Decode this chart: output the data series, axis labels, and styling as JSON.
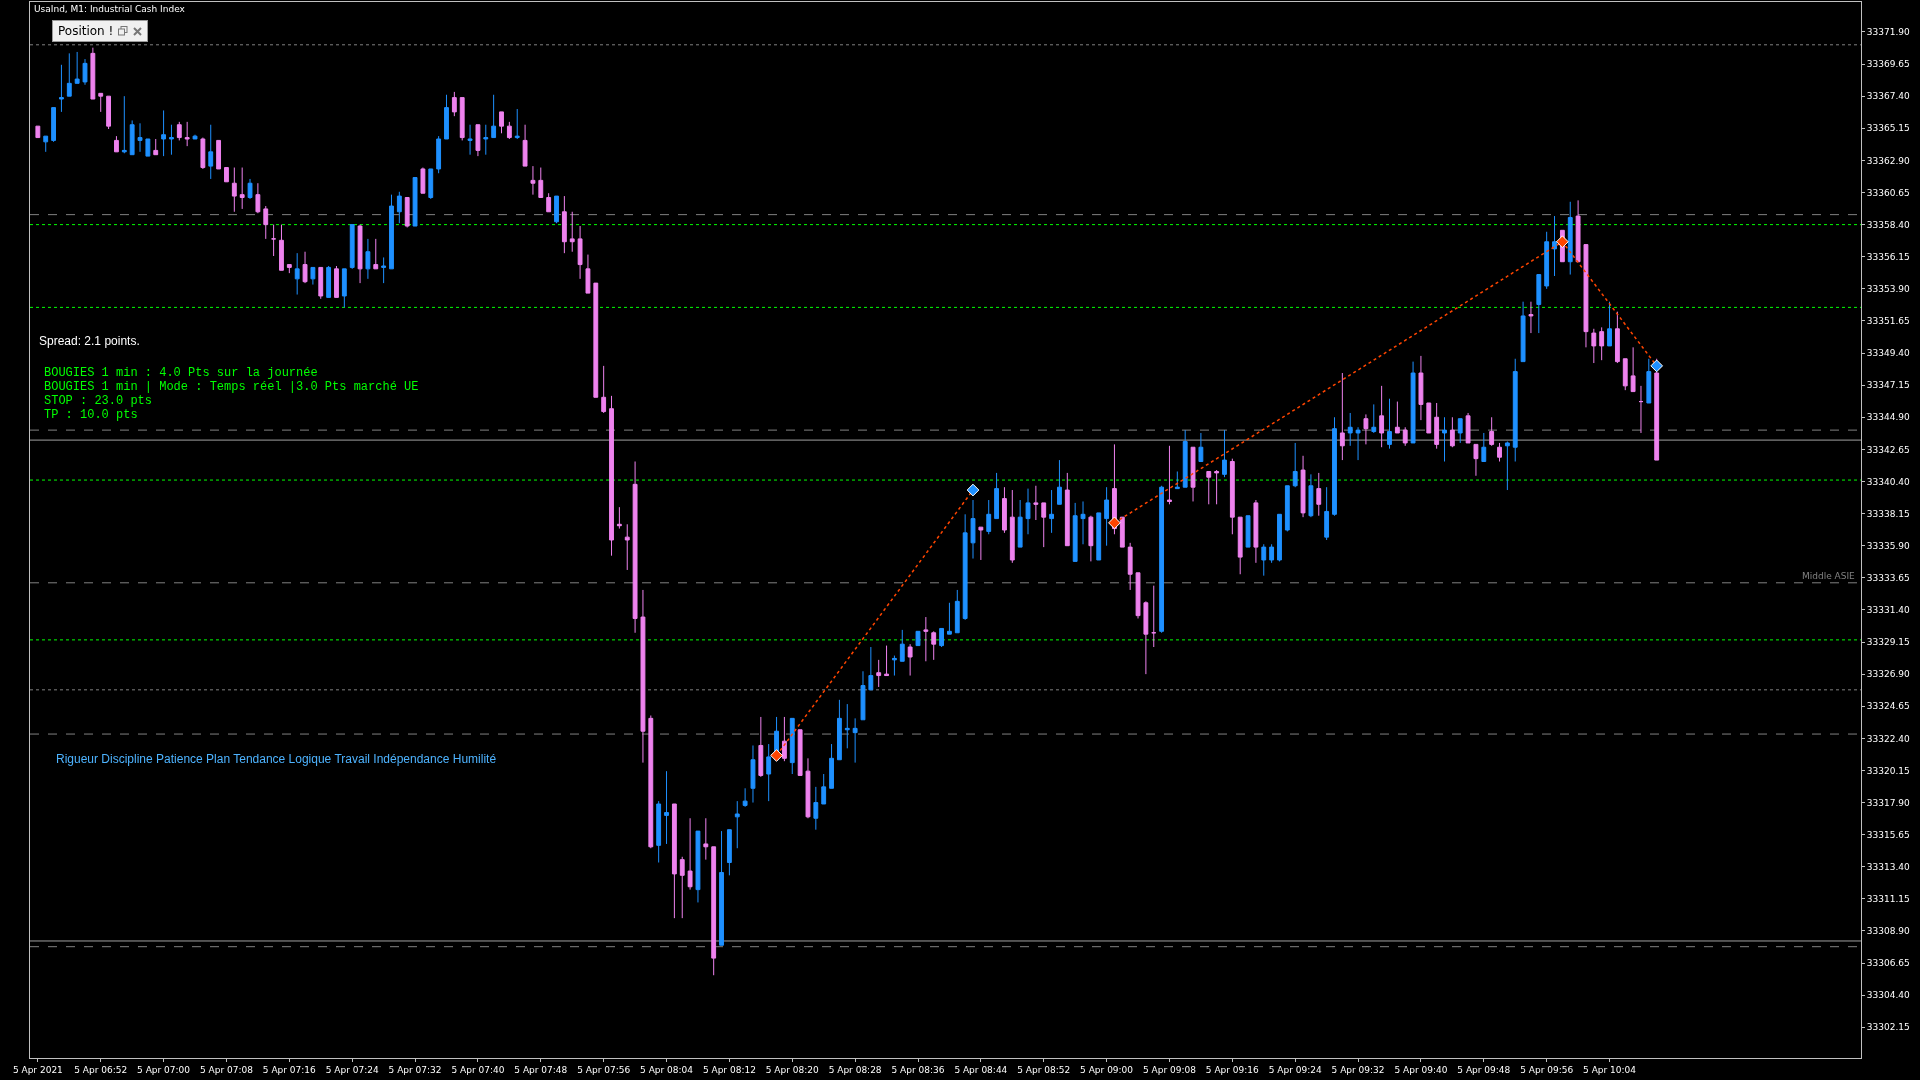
{
  "chart_data": {
    "type": "candlestick",
    "title": "UsaInd, M1: Industrial Cash Index",
    "annotations": [
      "Position !",
      "Spread: 2.1 points.",
      "BOUGIES 1 min : 4.0 Pts sur la journée",
      "BOUGIES 1 min | Mode : Temps réel |3.0 Pts marché UE",
      "STOP : 23.0 pts",
      "TP : 10.0 pts",
      "Rigueur Discipline Patience Plan Tendance Logique Travail Indépendance Humilité"
    ],
    "xlim": [
      "2021-04-05T06:43",
      "2021-04-05T10:36"
    ],
    "xticks": [
      {
        "value": "2021-04-05T06:44",
        "label": "5 Apr 2021"
      },
      {
        "value": "2021-04-05T06:52",
        "label": "5 Apr 06:52"
      },
      {
        "value": "2021-04-05T07:00",
        "label": "5 Apr 07:00"
      },
      {
        "value": "2021-04-05T07:08",
        "label": "5 Apr 07:08"
      },
      {
        "value": "2021-04-05T07:16",
        "label": "5 Apr 07:16"
      },
      {
        "value": "2021-04-05T07:24",
        "label": "5 Apr 07:24"
      },
      {
        "value": "2021-04-05T07:32",
        "label": "5 Apr 07:32"
      },
      {
        "value": "2021-04-05T07:40",
        "label": "5 Apr 07:40"
      },
      {
        "value": "2021-04-05T07:48",
        "label": "5 Apr 07:48"
      },
      {
        "value": "2021-04-05T07:56",
        "label": "5 Apr 07:56"
      },
      {
        "value": "2021-04-05T08:04",
        "label": "5 Apr 08:04"
      },
      {
        "value": "2021-04-05T08:12",
        "label": "5 Apr 08:12"
      },
      {
        "value": "2021-04-05T08:20",
        "label": "5 Apr 08:20"
      },
      {
        "value": "2021-04-05T08:28",
        "label": "5 Apr 08:28"
      },
      {
        "value": "2021-04-05T08:36",
        "label": "5 Apr 08:36"
      },
      {
        "value": "2021-04-05T08:44",
        "label": "5 Apr 08:44"
      },
      {
        "value": "2021-04-05T08:52",
        "label": "5 Apr 08:52"
      },
      {
        "value": "2021-04-05T09:00",
        "label": "5 Apr 09:00"
      },
      {
        "value": "2021-04-05T09:08",
        "label": "5 Apr 09:08"
      },
      {
        "value": "2021-04-05T09:16",
        "label": "5 Apr 09:16"
      },
      {
        "value": "2021-04-05T09:24",
        "label": "5 Apr 09:24"
      },
      {
        "value": "2021-04-05T09:32",
        "label": "5 Apr 09:32"
      },
      {
        "value": "2021-04-05T09:40",
        "label": "5 Apr 09:40"
      },
      {
        "value": "2021-04-05T09:48",
        "label": "5 Apr 09:48"
      },
      {
        "value": "2021-04-05T09:56",
        "label": "5 Apr 09:56"
      },
      {
        "value": "2021-04-05T10:04",
        "label": "5 Apr 10:04"
      }
    ],
    "ylim": [
      33300.0,
      33374.0
    ],
    "yticks": [
      33302.15,
      {
        "value": 33304.4,
        "label": "33304.40"
      },
      33306.65,
      {
        "value": 33308.9,
        "label": "33308.90"
      },
      33311.15,
      {
        "value": 33313.4,
        "label": "33313.40"
      },
      33315.65,
      {
        "value": 33317.9,
        "label": "33317.90"
      },
      33320.15,
      {
        "value": 33322.4,
        "label": "33322.40"
      },
      33324.65,
      {
        "value": 33326.9,
        "label": "33326.90"
      },
      33329.15,
      {
        "value": 33331.4,
        "label": "33331.40"
      },
      33333.65,
      {
        "value": 33335.9,
        "label": "33335.90"
      },
      33338.15,
      {
        "value": 33340.4,
        "label": "33340.40"
      },
      33342.65,
      {
        "value": 33344.9,
        "label": "33344.90"
      },
      33347.15,
      {
        "value": 33349.4,
        "label": "33349.40"
      },
      33351.65,
      {
        "value": 33353.9,
        "label": "33353.90"
      },
      33356.15,
      {
        "value": 33358.4,
        "label": "33358.40"
      },
      33360.65,
      {
        "value": 33362.9,
        "label": "33362.90"
      },
      33365.15,
      {
        "value": 33367.4,
        "label": "33367.40"
      },
      33369.65,
      {
        "value": 33371.9,
        "label": "33371.90"
      }
    ],
    "ref_lines": [
      {
        "axis": "y",
        "value": 33371.0,
        "color": "#808080",
        "line_style": "dotted"
      },
      {
        "axis": "y",
        "value": 33359.1,
        "color": "#808080",
        "line_style": "dashed"
      },
      {
        "axis": "y",
        "value": 33358.4,
        "color": "#00ff00",
        "line_style": "dotted"
      },
      {
        "axis": "y",
        "value": 33352.6,
        "color": "#00ff00",
        "line_style": "dotted"
      },
      {
        "axis": "y",
        "value": 33344.0,
        "color": "#808080",
        "line_style": "dashed"
      },
      {
        "axis": "y",
        "value": 33343.3,
        "color": "#a0a0a0",
        "line_style": "solid"
      },
      {
        "axis": "y",
        "value": 33340.5,
        "color": "#00ff00",
        "line_style": "dotted"
      },
      {
        "axis": "y",
        "value": 33333.3,
        "color": "#808080",
        "line_style": "dashed",
        "label": "Middle ASIE"
      },
      {
        "axis": "y",
        "value": 33329.3,
        "color": "#00ff00",
        "line_style": "dotted"
      },
      {
        "axis": "y",
        "value": 33325.8,
        "color": "#808080",
        "line_style": "dotted"
      },
      {
        "axis": "y",
        "value": 33322.7,
        "color": "#808080",
        "line_style": "dashed"
      },
      {
        "axis": "y",
        "value": 33308.2,
        "color": "#a0a0a0",
        "line_style": "solid"
      },
      {
        "axis": "y",
        "value": 33307.8,
        "color": "#808080",
        "line_style": "dashed"
      }
    ],
    "series": [
      {
        "type": "line",
        "color": "#ff4500",
        "line_style": "dotted",
        "x": [
          "2021-04-05T08:18",
          "2021-04-05T08:43",
          "2021-04-05T08:52",
          "2021-04-05T09:01",
          "2021-04-05T09:58",
          "2021-04-05T10:10"
        ],
        "values": [
          33321.2,
          33339.8,
          null,
          33337.5,
          33357.2,
          33348.5
        ]
      },
      {
        "type": "scatter",
        "color": "#ff4500",
        "marker": "diamond",
        "x": [
          "2021-04-05T08:18",
          "2021-04-05T09:01",
          "2021-04-05T09:58"
        ],
        "values": [
          33321.2,
          33337.5,
          33357.2
        ]
      },
      {
        "type": "scatter",
        "color": "#1e90ff",
        "marker": "diamond",
        "x": [
          "2021-04-05T08:43",
          "2021-04-05T10:10"
        ],
        "values": [
          33339.8,
          33348.5
        ]
      },
      {
        "color": "#1e90ff",
        "x": [
          "2021-04-05T06:45",
          "2021-04-05T06:46",
          "2021-04-05T06:47",
          "2021-04-05T06:48",
          "2021-04-05T06:49",
          "2021-04-05T06:50",
          "2021-04-05T06:55",
          "2021-04-05T06:56",
          "2021-04-05T06:57",
          "2021-04-05T06:58",
          "2021-04-05T07:00",
          "2021-04-05T07:01",
          "2021-04-05T07:04",
          "2021-04-05T07:06",
          "2021-04-05T07:11",
          "2021-04-05T07:17",
          "2021-04-05T07:19",
          "2021-04-05T07:21",
          "2021-04-05T07:23",
          "2021-04-05T07:24",
          "2021-04-05T07:26",
          "2021-04-05T07:28",
          "2021-04-05T07:29",
          "2021-04-05T07:30",
          "2021-04-05T07:32",
          "2021-04-05T07:34",
          "2021-04-05T07:35",
          "2021-04-05T07:36",
          "2021-04-05T07:39",
          "2021-04-05T07:41",
          "2021-04-05T07:42",
          "2021-04-05T07:45",
          "2021-04-05T07:50",
          "2021-04-05T08:03",
          "2021-04-05T08:04",
          "2021-04-05T08:08",
          "2021-04-05T08:11",
          "2021-04-05T08:12",
          "2021-04-05T08:13",
          "2021-04-05T08:14",
          "2021-04-05T08:15",
          "2021-04-05T08:17",
          "2021-04-05T08:18",
          "2021-04-05T08:20",
          "2021-04-05T08:23",
          "2021-04-05T08:24",
          "2021-04-05T08:25",
          "2021-04-05T08:26",
          "2021-04-05T08:27",
          "2021-04-05T08:28",
          "2021-04-05T08:29",
          "2021-04-05T08:30",
          "2021-04-05T08:33",
          "2021-04-05T08:34",
          "2021-04-05T08:36",
          "2021-04-05T08:39",
          "2021-04-05T08:40",
          "2021-04-05T08:41",
          "2021-04-05T08:42",
          "2021-04-05T08:43",
          "2021-04-05T08:45",
          "2021-04-05T08:46",
          "2021-04-05T08:49",
          "2021-04-05T08:50",
          "2021-04-05T08:53",
          "2021-04-05T08:54",
          "2021-04-05T08:56",
          "2021-04-05T08:57",
          "2021-04-05T08:59",
          "2021-04-05T09:00",
          "2021-04-05T09:07",
          "2021-04-05T09:09",
          "2021-04-05T09:10",
          "2021-04-05T09:12",
          "2021-04-05T09:15",
          "2021-04-05T09:18",
          "2021-04-05T09:20",
          "2021-04-05T09:21",
          "2021-04-05T09:22",
          "2021-04-05T09:23",
          "2021-04-05T09:24",
          "2021-04-05T09:26",
          "2021-04-05T09:28",
          "2021-04-05T09:29",
          "2021-04-05T09:31",
          "2021-04-05T09:32",
          "2021-04-05T09:34",
          "2021-04-05T09:36",
          "2021-04-05T09:39",
          "2021-04-05T09:43",
          "2021-04-05T09:45",
          "2021-04-05T09:48",
          "2021-04-05T09:51",
          "2021-04-05T09:52",
          "2021-04-05T09:53",
          "2021-04-05T09:55",
          "2021-04-05T09:56",
          "2021-04-05T09:57",
          "2021-04-05T09:59",
          "2021-04-05T10:04",
          "2021-04-05T10:09"
        ],
        "ohlc": [
          [
            33364.2,
            33364.6,
            33363.5,
            33364.6
          ],
          [
            33364.3,
            33366.6,
            33364.2,
            33366.6
          ],
          [
            33367.2,
            33369.6,
            33366.3,
            33367.3
          ],
          [
            33367.4,
            33370.4,
            33367.4,
            33368.3
          ],
          [
            33368.3,
            33370.5,
            33368.3,
            33368.6
          ],
          [
            33368.4,
            33370.0,
            33368.2,
            33369.7
          ],
          [
            33363.5,
            33367.4,
            33363.4,
            33363.6
          ],
          [
            33363.3,
            33365.7,
            33363.3,
            33365.4
          ],
          [
            33364.3,
            33365.5,
            33363.5,
            33364.5
          ],
          [
            33363.2,
            33364.4,
            33363.2,
            33364.4
          ],
          [
            33364.4,
            33366.4,
            33363.2,
            33364.7
          ],
          [
            33364.4,
            33365.4,
            33363.3,
            33364.5
          ],
          [
            33364.4,
            33364.7,
            33364.4,
            33364.6
          ],
          [
            33362.5,
            33365.4,
            33361.6,
            33363.5
          ],
          [
            33360.3,
            33361.6,
            33360.2,
            33361.3
          ],
          [
            33354.6,
            33356.4,
            33353.5,
            33355.3
          ],
          [
            33354.6,
            33355.4,
            33354.2,
            33355.4
          ],
          [
            33353.3,
            33355.5,
            33353.3,
            33355.4
          ],
          [
            33353.4,
            33355.3,
            33352.6,
            33355.3
          ],
          [
            33355.4,
            33358.4,
            33355.3,
            33358.4
          ],
          [
            33355.3,
            33357.4,
            33354.6,
            33356.5
          ],
          [
            33355.4,
            33356.1,
            33354.3,
            33355.5
          ],
          [
            33355.3,
            33360.5,
            33355.3,
            33359.7
          ],
          [
            33359.3,
            33360.7,
            33358.5,
            33360.4
          ],
          [
            33358.3,
            33361.7,
            33358.3,
            33361.7
          ],
          [
            33360.3,
            33362.3,
            33360.2,
            33362.3
          ],
          [
            33362.3,
            33364.6,
            33362.0,
            33364.4
          ],
          [
            33364.4,
            33367.5,
            33364.4,
            33366.6
          ],
          [
            33364.3,
            33365.4,
            33363.3,
            33364.4
          ],
          [
            33364.4,
            33365.4,
            33363.3,
            33364.5
          ],
          [
            33364.5,
            33367.5,
            33364.5,
            33365.3
          ],
          [
            33364.5,
            33366.5,
            33364.4,
            33364.6
          ],
          [
            33358.6,
            33360.4,
            33358.5,
            33360.4
          ],
          [
            33314.9,
            33318.0,
            33313.7,
            33317.8
          ],
          [
            33317.0,
            33320.1,
            33315.0,
            33317.2
          ],
          [
            33311.8,
            33315.9,
            33310.9,
            33315.9
          ],
          [
            33307.9,
            33315.9,
            33307.9,
            33313.0
          ],
          [
            33313.7,
            33316.0,
            33312.8,
            33316.0
          ],
          [
            33316.9,
            33318.0,
            33314.7,
            33317.1
          ],
          [
            33317.7,
            33318.9,
            33317.6,
            33318.0
          ],
          [
            33318.9,
            33321.9,
            33317.9,
            33320.9
          ],
          [
            33319.9,
            33322.0,
            33318.0,
            33321.1
          ],
          [
            33320.9,
            33323.9,
            33320.9,
            33322.9
          ],
          [
            33320.7,
            33323.8,
            33319.9,
            33323.8
          ],
          [
            33316.8,
            33319.0,
            33316.0,
            33317.9
          ],
          [
            33317.8,
            33319.9,
            33317.8,
            33319.0
          ],
          [
            33318.9,
            33322.0,
            33318.9,
            33321.0
          ],
          [
            33320.9,
            33325.1,
            33320.9,
            33323.8
          ],
          [
            33323.0,
            33324.8,
            33321.7,
            33323.1
          ],
          [
            33322.8,
            33323.8,
            33320.7,
            33323.1
          ],
          [
            33323.7,
            33327.1,
            33323.7,
            33326.1
          ],
          [
            33325.8,
            33328.8,
            33325.8,
            33326.8
          ],
          [
            33327.9,
            33328.2,
            33326.8,
            33328.0
          ],
          [
            33327.8,
            33330.0,
            33327.8,
            33329.0
          ],
          [
            33328.9,
            33329.9,
            33328.9,
            33329.9
          ],
          [
            33328.9,
            33330.1,
            33328.8,
            33330.1
          ],
          [
            33329.7,
            33331.9,
            33329.7,
            33329.9
          ],
          [
            33329.8,
            33332.8,
            33329.8,
            33332.0
          ],
          [
            33330.8,
            33338.1,
            33330.7,
            33336.8
          ],
          [
            33336.1,
            33339.1,
            33335.0,
            33337.8
          ],
          [
            33336.9,
            33339.1,
            33336.7,
            33338.1
          ],
          [
            33337.8,
            33341.0,
            33337.8,
            33339.9
          ],
          [
            33335.8,
            33339.1,
            33335.8,
            33337.9
          ],
          [
            33337.8,
            33339.9,
            33336.7,
            33338.9
          ],
          [
            33337.8,
            33339.8,
            33336.8,
            33338.1
          ],
          [
            33338.8,
            33341.9,
            33338.8,
            33340.0
          ],
          [
            33334.8,
            33338.9,
            33334.8,
            33338.0
          ],
          [
            33337.8,
            33339.0,
            33336.0,
            33338.1
          ],
          [
            33334.9,
            33338.2,
            33334.9,
            33338.2
          ],
          [
            33337.8,
            33340.0,
            33335.9,
            33339.1
          ],
          [
            33329.9,
            33340.1,
            33329.8,
            33340.0
          ],
          [
            33339.9,
            33341.1,
            33339.9,
            33340.0
          ],
          [
            33340.0,
            33344.0,
            33340.0,
            33343.2
          ],
          [
            33341.8,
            33343.8,
            33341.8,
            33342.8
          ],
          [
            33340.9,
            33344.0,
            33340.7,
            33341.9
          ],
          [
            33335.8,
            33338.0,
            33335.8,
            33338.0
          ],
          [
            33334.9,
            33336.0,
            33333.8,
            33335.8
          ],
          [
            33334.9,
            33336.0,
            33334.7,
            33335.8
          ],
          [
            33334.9,
            33338.1,
            33334.8,
            33338.1
          ],
          [
            33337.0,
            33340.1,
            33336.9,
            33340.1
          ],
          [
            33340.1,
            33343.1,
            33340.0,
            33341.1
          ],
          [
            33338.0,
            33340.9,
            33337.9,
            33340.1
          ],
          [
            33336.5,
            33340.0,
            33336.3,
            33338.3
          ],
          [
            33338.1,
            33344.9,
            33338.0,
            33344.1
          ],
          [
            33343.8,
            33345.2,
            33342.9,
            33344.2
          ],
          [
            33343.8,
            33344.2,
            33341.9,
            33344.0
          ],
          [
            33343.9,
            33345.8,
            33343.8,
            33344.2
          ],
          [
            33343.0,
            33346.2,
            33342.7,
            33343.9
          ],
          [
            33343.1,
            33348.8,
            33343.1,
            33348.0
          ],
          [
            33343.8,
            33344.9,
            33341.8,
            33344.0
          ],
          [
            33343.8,
            33344.8,
            33343.1,
            33344.8
          ],
          [
            33341.8,
            33343.8,
            33341.8,
            33342.8
          ],
          [
            33342.9,
            33343.2,
            33339.8,
            33343.1
          ],
          [
            33342.8,
            33349.0,
            33341.8,
            33348.1
          ],
          [
            33348.8,
            33353.0,
            33348.8,
            33352.0
          ],
          [
            33352.8,
            33354.9,
            33350.8,
            33354.9
          ],
          [
            33354.1,
            33357.9,
            33353.9,
            33357.2
          ],
          [
            33356.7,
            33359.0,
            33354.8,
            33357.2
          ],
          [
            33355.8,
            33360.0,
            33354.9,
            33358.9
          ],
          [
            33349.9,
            33353.0,
            33349.9,
            33351.1
          ],
          [
            33345.9,
            33349.0,
            33345.9,
            33348.1
          ]
        ]
      },
      {
        "color": "#ee82ee",
        "x": [
          "2021-04-05T06:44",
          "2021-04-05T06:51",
          "2021-04-05T06:52",
          "2021-04-05T06:53",
          "2021-04-05T06:54",
          "2021-04-05T06:59",
          "2021-04-05T07:02",
          "2021-04-05T07:03",
          "2021-04-05T07:05",
          "2021-04-05T07:07",
          "2021-04-05T07:08",
          "2021-04-05T07:09",
          "2021-04-05T07:10",
          "2021-04-05T07:12",
          "2021-04-05T07:13",
          "2021-04-05T07:14",
          "2021-04-05T07:15",
          "2021-04-05T07:16",
          "2021-04-05T07:18",
          "2021-04-05T07:20",
          "2021-04-05T07:22",
          "2021-04-05T07:25",
          "2021-04-05T07:27",
          "2021-04-05T07:31",
          "2021-04-05T07:33",
          "2021-04-05T07:37",
          "2021-04-05T07:38",
          "2021-04-05T07:40",
          "2021-04-05T07:43",
          "2021-04-05T07:44",
          "2021-04-05T07:46",
          "2021-04-05T07:47",
          "2021-04-05T07:48",
          "2021-04-05T07:49",
          "2021-04-05T07:51",
          "2021-04-05T07:52",
          "2021-04-05T07:53",
          "2021-04-05T07:54",
          "2021-04-05T07:55",
          "2021-04-05T07:56",
          "2021-04-05T07:57",
          "2021-04-05T07:58",
          "2021-04-05T07:59",
          "2021-04-05T08:00",
          "2021-04-05T08:01",
          "2021-04-05T08:02",
          "2021-04-05T08:05",
          "2021-04-05T08:06",
          "2021-04-05T08:07",
          "2021-04-05T08:09",
          "2021-04-05T08:10",
          "2021-04-05T08:16",
          "2021-04-05T08:19",
          "2021-04-05T08:21",
          "2021-04-05T08:22",
          "2021-04-05T08:31",
          "2021-04-05T08:32",
          "2021-04-05T08:35",
          "2021-04-05T08:37",
          "2021-04-05T08:38",
          "2021-04-05T08:44",
          "2021-04-05T08:47",
          "2021-04-05T08:48",
          "2021-04-05T08:51",
          "2021-04-05T08:52",
          "2021-04-05T08:55",
          "2021-04-05T08:58",
          "2021-04-05T09:01",
          "2021-04-05T09:02",
          "2021-04-05T09:03",
          "2021-04-05T09:04",
          "2021-04-05T09:05",
          "2021-04-05T09:06",
          "2021-04-05T09:08",
          "2021-04-05T09:11",
          "2021-04-05T09:13",
          "2021-04-05T09:14",
          "2021-04-05T09:16",
          "2021-04-05T09:17",
          "2021-04-05T09:19",
          "2021-04-05T09:25",
          "2021-04-05T09:27",
          "2021-04-05T09:30",
          "2021-04-05T09:33",
          "2021-04-05T09:35",
          "2021-04-05T09:37",
          "2021-04-05T09:38",
          "2021-04-05T09:40",
          "2021-04-05T09:41",
          "2021-04-05T09:42",
          "2021-04-05T09:44",
          "2021-04-05T09:46",
          "2021-04-05T09:47",
          "2021-04-05T09:49",
          "2021-04-05T09:50",
          "2021-04-05T09:54",
          "2021-04-05T09:58",
          "2021-04-05T10:00",
          "2021-04-05T10:01",
          "2021-04-05T10:02",
          "2021-04-05T10:03",
          "2021-04-05T10:05",
          "2021-04-05T10:06",
          "2021-04-05T10:07",
          "2021-04-05T10:08",
          "2021-04-05T10:10"
        ],
        "ohlc": [
          [
            33365.3,
            33365.3,
            33364.5,
            33364.5
          ],
          [
            33370.4,
            33370.8,
            33367.2,
            33367.2
          ],
          [
            33367.6,
            33367.6,
            33366.3,
            33367.4
          ],
          [
            33367.4,
            33367.4,
            33365.1,
            33365.3
          ],
          [
            33364.3,
            33364.6,
            33363.5,
            33363.5
          ],
          [
            33363.6,
            33364.4,
            33363.3,
            33363.3
          ],
          [
            33365.4,
            33365.6,
            33364.3,
            33364.5
          ],
          [
            33364.5,
            33365.6,
            33363.9,
            33364.4
          ],
          [
            33364.4,
            33364.5,
            33362.3,
            33362.4
          ],
          [
            33364.3,
            33364.3,
            33362.3,
            33362.3
          ],
          [
            33362.4,
            33362.4,
            33361.4,
            33361.4
          ],
          [
            33361.3,
            33362.4,
            33359.3,
            33360.4
          ],
          [
            33360.5,
            33362.4,
            33359.5,
            33360.3
          ],
          [
            33360.5,
            33361.3,
            33359.2,
            33359.3
          ],
          [
            33359.5,
            33359.7,
            33357.4,
            33358.4
          ],
          [
            33357.4,
            33358.4,
            33356.2,
            33357.4
          ],
          [
            33357.3,
            33358.4,
            33355.2,
            33355.2
          ],
          [
            33355.6,
            33355.6,
            33355.0,
            33355.4
          ],
          [
            33355.6,
            33356.5,
            33354.3,
            33354.4
          ],
          [
            33355.4,
            33355.4,
            33353.2,
            33353.4
          ],
          [
            33355.3,
            33355.5,
            33353.3,
            33353.3
          ],
          [
            33358.3,
            33358.4,
            33354.3,
            33355.3
          ],
          [
            33355.6,
            33357.4,
            33355.3,
            33355.3
          ],
          [
            33360.3,
            33360.3,
            33358.2,
            33358.3
          ],
          [
            33362.3,
            33362.4,
            33360.6,
            33360.6
          ],
          [
            33367.3,
            33367.7,
            33366.0,
            33366.3
          ],
          [
            33367.3,
            33367.3,
            33364.3,
            33364.5
          ],
          [
            33365.4,
            33365.4,
            33363.2,
            33363.6
          ],
          [
            33366.3,
            33366.3,
            33364.8,
            33365.3
          ],
          [
            33365.3,
            33365.6,
            33364.4,
            33364.5
          ],
          [
            33364.3,
            33365.4,
            33362.5,
            33362.5
          ],
          [
            33361.5,
            33362.5,
            33360.5,
            33361.3
          ],
          [
            33361.5,
            33362.4,
            33360.3,
            33360.3
          ],
          [
            33360.3,
            33360.6,
            33359.3,
            33359.3
          ],
          [
            33359.3,
            33360.4,
            33356.4,
            33357.2
          ],
          [
            33357.4,
            33359.3,
            33356.5,
            33357.2
          ],
          [
            33357.4,
            33358.3,
            33354.6,
            33355.6
          ],
          [
            33355.3,
            33356.3,
            33353.6,
            33353.6
          ],
          [
            33354.3,
            33354.3,
            33346.3,
            33346.3
          ],
          [
            33346.3,
            33348.5,
            33345.2,
            33345.3
          ],
          [
            33345.5,
            33346.4,
            33335.2,
            33336.3
          ],
          [
            33337.4,
            33338.6,
            33337.1,
            33337.3
          ],
          [
            33336.5,
            33337.4,
            33334.2,
            33336.3
          ],
          [
            33340.2,
            33341.8,
            33329.8,
            33330.8
          ],
          [
            33330.9,
            33332.8,
            33320.7,
            33322.9
          ],
          [
            33323.8,
            33324.0,
            33314.7,
            33314.8
          ],
          [
            33317.8,
            33317.8,
            33309.8,
            33312.9
          ],
          [
            33313.9,
            33314.1,
            33309.8,
            33312.8
          ],
          [
            33313.1,
            33316.8,
            33311.8,
            33312.0
          ],
          [
            33315.0,
            33316.8,
            33313.9,
            33314.8
          ],
          [
            33314.8,
            33314.8,
            33305.8,
            33307.0
          ],
          [
            33321.9,
            33323.9,
            33319.7,
            33319.8
          ],
          [
            33322.2,
            33323.9,
            33320.8,
            33321.0
          ],
          [
            33323.0,
            33323.0,
            33319.8,
            33319.8
          ],
          [
            33320.1,
            33321.0,
            33316.8,
            33316.9
          ],
          [
            33327.0,
            33327.9,
            33326.0,
            33326.8
          ],
          [
            33326.9,
            33328.9,
            33326.8,
            33326.8
          ],
          [
            33328.8,
            33329.0,
            33326.8,
            33328.1
          ],
          [
            33330.0,
            33330.9,
            33327.8,
            33329.9
          ],
          [
            33329.8,
            33329.9,
            33327.9,
            33329.0
          ],
          [
            33337.2,
            33337.2,
            33334.9,
            33337.0
          ],
          [
            33339.2,
            33340.0,
            33336.8,
            33337.0
          ],
          [
            33337.9,
            33339.8,
            33334.7,
            33334.9
          ],
          [
            33338.9,
            33340.1,
            33337.7,
            33338.8
          ],
          [
            33338.9,
            33338.9,
            33335.8,
            33337.9
          ],
          [
            33339.8,
            33341.0,
            33335.9,
            33335.9
          ],
          [
            33337.9,
            33338.0,
            33334.8,
            33335.9
          ],
          [
            33339.9,
            33343.0,
            33336.7,
            33337.1
          ],
          [
            33337.9,
            33337.9,
            33335.8,
            33335.8
          ],
          [
            33335.8,
            33336.1,
            33332.8,
            33333.9
          ],
          [
            33334.0,
            33334.0,
            33330.8,
            33331.0
          ],
          [
            33331.9,
            33332.0,
            33326.9,
            33329.7
          ],
          [
            33329.8,
            33333.1,
            33328.8,
            33329.8
          ],
          [
            33339.1,
            33342.9,
            33338.8,
            33339.0
          ],
          [
            33342.8,
            33342.8,
            33339.0,
            33340.0
          ],
          [
            33341.1,
            33341.1,
            33338.8,
            33340.7
          ],
          [
            33341.1,
            33341.2,
            33338.8,
            33341.0
          ],
          [
            33341.8,
            33342.0,
            33336.7,
            33337.9
          ],
          [
            33337.9,
            33337.9,
            33333.9,
            33335.1
          ],
          [
            33338.9,
            33339.1,
            33334.7,
            33335.8
          ],
          [
            33341.2,
            33342.2,
            33337.9,
            33338.2
          ],
          [
            33339.9,
            33341.0,
            33338.0,
            33338.8
          ],
          [
            33343.8,
            33348.0,
            33341.9,
            33342.9
          ],
          [
            33344.8,
            33345.1,
            33343.0,
            33344.1
          ],
          [
            33345.0,
            33347.1,
            33342.8,
            33343.8
          ],
          [
            33344.2,
            33346.0,
            33343.8,
            33343.8
          ],
          [
            33344.0,
            33344.2,
            33342.9,
            33343.1
          ],
          [
            33348.0,
            33349.2,
            33344.7,
            33345.8
          ],
          [
            33345.9,
            33345.9,
            33343.8,
            33343.8
          ],
          [
            33344.9,
            33345.9,
            33342.7,
            33343.0
          ],
          [
            33344.0,
            33344.9,
            33342.8,
            33342.9
          ],
          [
            33345.0,
            33345.2,
            33343.1,
            33343.1
          ],
          [
            33343.0,
            33343.0,
            33340.8,
            33342.0
          ],
          [
            33343.9,
            33344.9,
            33342.9,
            33343.0
          ],
          [
            33342.8,
            33343.1,
            33341.8,
            33342.1
          ],
          [
            33352.1,
            33353.0,
            33350.8,
            33352.0
          ],
          [
            33358.0,
            33358.0,
            33355.8,
            33355.8
          ],
          [
            33359.0,
            33360.1,
            33355.8,
            33355.8
          ],
          [
            33357.0,
            33357.0,
            33349.8,
            33350.9
          ],
          [
            33350.8,
            33351.1,
            33348.7,
            33349.9
          ],
          [
            33350.9,
            33351.2,
            33348.9,
            33349.9
          ],
          [
            33351.1,
            33352.3,
            33348.7,
            33348.8
          ],
          [
            33349.0,
            33349.0,
            33346.8,
            33347.1
          ],
          [
            33347.8,
            33349.8,
            33346.7,
            33346.7
          ],
          [
            33346.0,
            33347.1,
            33343.8,
            33346.0
          ],
          [
            33348.0,
            33349.0,
            33341.9,
            33341.9
          ]
        ]
      }
    ]
  }
}
